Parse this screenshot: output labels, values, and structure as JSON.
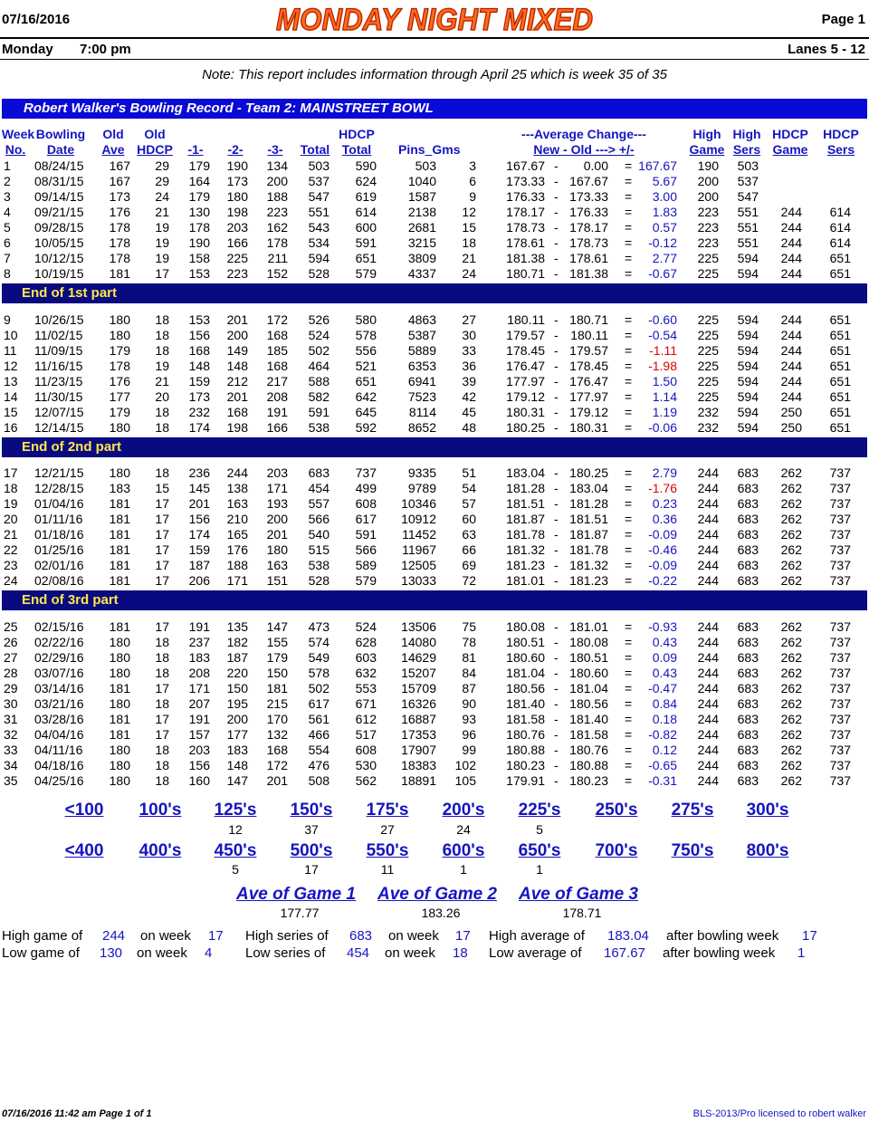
{
  "header": {
    "date": "07/16/2016",
    "title": "MONDAY NIGHT MIXED",
    "page": "Page 1",
    "day": "Monday",
    "time": "7:00 pm",
    "lanes": "Lanes 5 - 12",
    "note": "Note: This report includes information through April 25   which is week 35 of 35"
  },
  "record_title": "Robert Walker's Bowling Record  - Team 2: MAINSTREET BOWL",
  "columns": {
    "week_top": "Week",
    "week_bot": "No.",
    "bowl_top": "Bowling",
    "bowl_bot": "Date",
    "oldave_top": "Old",
    "oldave_bot": "Ave",
    "oldhdcp_top": "Old",
    "oldhdcp_bot": "HDCP",
    "g1": "-1-",
    "g2": "-2-",
    "g3": "-3-",
    "total": "Total",
    "hdcptotal_top": "HDCP",
    "hdcptotal_bot": "Total",
    "pins": "Pins",
    "gms": "Gms",
    "avgchg_top": "---Average Change---",
    "avgchg_bot": "New - Old ---> +/-",
    "highgame_top": "High",
    "highgame_bot": "Game",
    "highsers_top": "High",
    "highsers_bot": "Sers",
    "hdcpgame_top": "HDCP",
    "hdcpgame_bot": "Game",
    "hdcpsers_top": "HDCP",
    "hdcpsers_bot": "Sers"
  },
  "parts": [
    {
      "label": "End of 1st part",
      "rows": [
        [
          "1",
          "08/24/15",
          "167",
          "29",
          "179",
          "190",
          "134",
          "503",
          "590",
          "503",
          "3",
          "167.67",
          "0.00",
          "167.67",
          "190",
          "503",
          "",
          ""
        ],
        [
          "2",
          "08/31/15",
          "167",
          "29",
          "164",
          "173",
          "200",
          "537",
          "624",
          "1040",
          "6",
          "173.33",
          "167.67",
          "5.67",
          "200",
          "537",
          "",
          ""
        ],
        [
          "3",
          "09/14/15",
          "173",
          "24",
          "179",
          "180",
          "188",
          "547",
          "619",
          "1587",
          "9",
          "176.33",
          "173.33",
          "3.00",
          "200",
          "547",
          "",
          ""
        ],
        [
          "4",
          "09/21/15",
          "176",
          "21",
          "130",
          "198",
          "223",
          "551",
          "614",
          "2138",
          "12",
          "178.17",
          "176.33",
          "1.83",
          "223",
          "551",
          "244",
          "614"
        ],
        [
          "5",
          "09/28/15",
          "178",
          "19",
          "178",
          "203",
          "162",
          "543",
          "600",
          "2681",
          "15",
          "178.73",
          "178.17",
          "0.57",
          "223",
          "551",
          "244",
          "614"
        ],
        [
          "6",
          "10/05/15",
          "178",
          "19",
          "190",
          "166",
          "178",
          "534",
          "591",
          "3215",
          "18",
          "178.61",
          "178.73",
          "-0.12",
          "223",
          "551",
          "244",
          "614"
        ],
        [
          "7",
          "10/12/15",
          "178",
          "19",
          "158",
          "225",
          "211",
          "594",
          "651",
          "3809",
          "21",
          "181.38",
          "178.61",
          "2.77",
          "225",
          "594",
          "244",
          "651"
        ],
        [
          "8",
          "10/19/15",
          "181",
          "17",
          "153",
          "223",
          "152",
          "528",
          "579",
          "4337",
          "24",
          "180.71",
          "181.38",
          "-0.67",
          "225",
          "594",
          "244",
          "651"
        ]
      ]
    },
    {
      "label": "End of 2nd part",
      "rows": [
        [
          "9",
          "10/26/15",
          "180",
          "18",
          "153",
          "201",
          "172",
          "526",
          "580",
          "4863",
          "27",
          "180.11",
          "180.71",
          "-0.60",
          "225",
          "594",
          "244",
          "651"
        ],
        [
          "10",
          "11/02/15",
          "180",
          "18",
          "156",
          "200",
          "168",
          "524",
          "578",
          "5387",
          "30",
          "179.57",
          "180.11",
          "-0.54",
          "225",
          "594",
          "244",
          "651"
        ],
        [
          "11",
          "11/09/15",
          "179",
          "18",
          "168",
          "149",
          "185",
          "502",
          "556",
          "5889",
          "33",
          "178.45",
          "179.57",
          "-1.11",
          "225",
          "594",
          "244",
          "651"
        ],
        [
          "12",
          "11/16/15",
          "178",
          "19",
          "148",
          "148",
          "168",
          "464",
          "521",
          "6353",
          "36",
          "176.47",
          "178.45",
          "-1.98",
          "225",
          "594",
          "244",
          "651"
        ],
        [
          "13",
          "11/23/15",
          "176",
          "21",
          "159",
          "212",
          "217",
          "588",
          "651",
          "6941",
          "39",
          "177.97",
          "176.47",
          "1.50",
          "225",
          "594",
          "244",
          "651"
        ],
        [
          "14",
          "11/30/15",
          "177",
          "20",
          "173",
          "201",
          "208",
          "582",
          "642",
          "7523",
          "42",
          "179.12",
          "177.97",
          "1.14",
          "225",
          "594",
          "244",
          "651"
        ],
        [
          "15",
          "12/07/15",
          "179",
          "18",
          "232",
          "168",
          "191",
          "591",
          "645",
          "8114",
          "45",
          "180.31",
          "179.12",
          "1.19",
          "232",
          "594",
          "250",
          "651"
        ],
        [
          "16",
          "12/14/15",
          "180",
          "18",
          "174",
          "198",
          "166",
          "538",
          "592",
          "8652",
          "48",
          "180.25",
          "180.31",
          "-0.06",
          "232",
          "594",
          "250",
          "651"
        ]
      ]
    },
    {
      "label": "End of 3rd part",
      "rows": [
        [
          "17",
          "12/21/15",
          "180",
          "18",
          "236",
          "244",
          "203",
          "683",
          "737",
          "9335",
          "51",
          "183.04",
          "180.25",
          "2.79",
          "244",
          "683",
          "262",
          "737"
        ],
        [
          "18",
          "12/28/15",
          "183",
          "15",
          "145",
          "138",
          "171",
          "454",
          "499",
          "9789",
          "54",
          "181.28",
          "183.04",
          "-1.76",
          "244",
          "683",
          "262",
          "737"
        ],
        [
          "19",
          "01/04/16",
          "181",
          "17",
          "201",
          "163",
          "193",
          "557",
          "608",
          "10346",
          "57",
          "181.51",
          "181.28",
          "0.23",
          "244",
          "683",
          "262",
          "737"
        ],
        [
          "20",
          "01/11/16",
          "181",
          "17",
          "156",
          "210",
          "200",
          "566",
          "617",
          "10912",
          "60",
          "181.87",
          "181.51",
          "0.36",
          "244",
          "683",
          "262",
          "737"
        ],
        [
          "21",
          "01/18/16",
          "181",
          "17",
          "174",
          "165",
          "201",
          "540",
          "591",
          "11452",
          "63",
          "181.78",
          "181.87",
          "-0.09",
          "244",
          "683",
          "262",
          "737"
        ],
        [
          "22",
          "01/25/16",
          "181",
          "17",
          "159",
          "176",
          "180",
          "515",
          "566",
          "11967",
          "66",
          "181.32",
          "181.78",
          "-0.46",
          "244",
          "683",
          "262",
          "737"
        ],
        [
          "23",
          "02/01/16",
          "181",
          "17",
          "187",
          "188",
          "163",
          "538",
          "589",
          "12505",
          "69",
          "181.23",
          "181.32",
          "-0.09",
          "244",
          "683",
          "262",
          "737"
        ],
        [
          "24",
          "02/08/16",
          "181",
          "17",
          "206",
          "171",
          "151",
          "528",
          "579",
          "13033",
          "72",
          "181.01",
          "181.23",
          "-0.22",
          "244",
          "683",
          "262",
          "737"
        ]
      ]
    },
    {
      "label": "",
      "rows": [
        [
          "25",
          "02/15/16",
          "181",
          "17",
          "191",
          "135",
          "147",
          "473",
          "524",
          "13506",
          "75",
          "180.08",
          "181.01",
          "-0.93",
          "244",
          "683",
          "262",
          "737"
        ],
        [
          "26",
          "02/22/16",
          "180",
          "18",
          "237",
          "182",
          "155",
          "574",
          "628",
          "14080",
          "78",
          "180.51",
          "180.08",
          "0.43",
          "244",
          "683",
          "262",
          "737"
        ],
        [
          "27",
          "02/29/16",
          "180",
          "18",
          "183",
          "187",
          "179",
          "549",
          "603",
          "14629",
          "81",
          "180.60",
          "180.51",
          "0.09",
          "244",
          "683",
          "262",
          "737"
        ],
        [
          "28",
          "03/07/16",
          "180",
          "18",
          "208",
          "220",
          "150",
          "578",
          "632",
          "15207",
          "84",
          "181.04",
          "180.60",
          "0.43",
          "244",
          "683",
          "262",
          "737"
        ],
        [
          "29",
          "03/14/16",
          "181",
          "17",
          "171",
          "150",
          "181",
          "502",
          "553",
          "15709",
          "87",
          "180.56",
          "181.04",
          "-0.47",
          "244",
          "683",
          "262",
          "737"
        ],
        [
          "30",
          "03/21/16",
          "180",
          "18",
          "207",
          "195",
          "215",
          "617",
          "671",
          "16326",
          "90",
          "181.40",
          "180.56",
          "0.84",
          "244",
          "683",
          "262",
          "737"
        ],
        [
          "31",
          "03/28/16",
          "181",
          "17",
          "191",
          "200",
          "170",
          "561",
          "612",
          "16887",
          "93",
          "181.58",
          "181.40",
          "0.18",
          "244",
          "683",
          "262",
          "737"
        ],
        [
          "32",
          "04/04/16",
          "181",
          "17",
          "157",
          "177",
          "132",
          "466",
          "517",
          "17353",
          "96",
          "180.76",
          "181.58",
          "-0.82",
          "244",
          "683",
          "262",
          "737"
        ],
        [
          "33",
          "04/11/16",
          "180",
          "18",
          "203",
          "183",
          "168",
          "554",
          "608",
          "17907",
          "99",
          "180.88",
          "180.76",
          "0.12",
          "244",
          "683",
          "262",
          "737"
        ],
        [
          "34",
          "04/18/16",
          "180",
          "18",
          "156",
          "148",
          "172",
          "476",
          "530",
          "18383",
          "102",
          "180.23",
          "180.88",
          "-0.65",
          "244",
          "683",
          "262",
          "737"
        ],
        [
          "35",
          "04/25/16",
          "180",
          "18",
          "160",
          "147",
          "201",
          "508",
          "562",
          "18891",
          "105",
          "179.91",
          "180.23",
          "-0.31",
          "244",
          "683",
          "262",
          "737"
        ]
      ]
    }
  ],
  "game_dist": {
    "labels": [
      "<100",
      "100's",
      "125's",
      "150's",
      "175's",
      "200's",
      "225's",
      "250's",
      "275's",
      "300's"
    ],
    "values": [
      "",
      "",
      "12",
      "37",
      "27",
      "24",
      "5",
      "",
      "",
      ""
    ]
  },
  "series_dist": {
    "labels": [
      "<400",
      "400's",
      "450's",
      "500's",
      "550's",
      "600's",
      "650's",
      "700's",
      "750's",
      "800's"
    ],
    "values": [
      "",
      "",
      "5",
      "17",
      "11",
      "1",
      "1",
      "",
      "",
      ""
    ]
  },
  "game_averages": {
    "g1_label": "Ave of Game 1",
    "g1": "177.77",
    "g2_label": "Ave of Game 2",
    "g2": "183.26",
    "g3_label": "Ave of Game 3",
    "g3": "178.71"
  },
  "summary": {
    "high_game_lbl": "High game of",
    "high_game": "244",
    "high_game_week_lbl": "on week",
    "high_game_week": "17",
    "high_series_lbl": "High series of",
    "high_series": "683",
    "high_series_week_lbl": "on week",
    "high_series_week": "17",
    "high_avg_lbl": "High average of",
    "high_avg": "183.04",
    "high_avg_week_lbl": "after bowling week",
    "high_avg_week": "17",
    "low_game_lbl": "Low game of",
    "low_game": "130",
    "low_game_week_lbl": "on week",
    "low_game_week": "4",
    "low_series_lbl": "Low series of",
    "low_series": "454",
    "low_series_week_lbl": "on week",
    "low_series_week": "18",
    "low_avg_lbl": "Low average of",
    "low_avg": "167.67",
    "low_avg_week_lbl": "after bowling week",
    "low_avg_week": "1"
  },
  "footer": {
    "left": "07/16/2016  11:42 am  Page 1 of 1",
    "right": "BLS-2013/Pro licensed to robert walker"
  },
  "colors": {
    "blue_text": "#1515c0",
    "red_text": "#e00000",
    "title_bar": "#0a0ad6",
    "part_bar": "#0a0a80",
    "part_text": "#ffe84a",
    "title_orange": "#ff6a1a"
  }
}
